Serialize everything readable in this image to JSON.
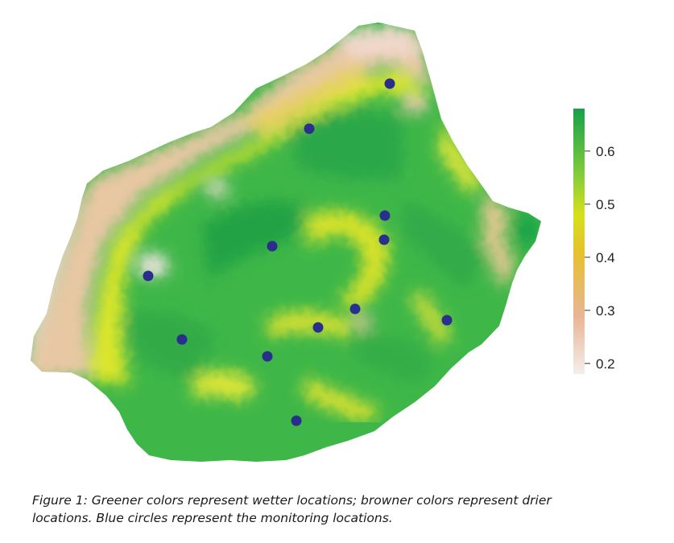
{
  "colors": {
    "wet": "#22a84a",
    "mid": "#e8e01a",
    "dry": "#e8b090",
    "driest": "#f3e6e6",
    "monitor_point": "#2a2f8c"
  },
  "legend": {
    "ticks": [
      "0.6",
      "0.5",
      "0.4",
      "0.3",
      "0.2"
    ],
    "range": [
      0.18,
      0.68
    ]
  },
  "monitoring_locations_count": 12,
  "caption": {
    "line1": "Figure 1: Greener colors represent wetter locations; browner colors represent drier",
    "line2": "locations. Blue circles represent the monitoring locations."
  }
}
